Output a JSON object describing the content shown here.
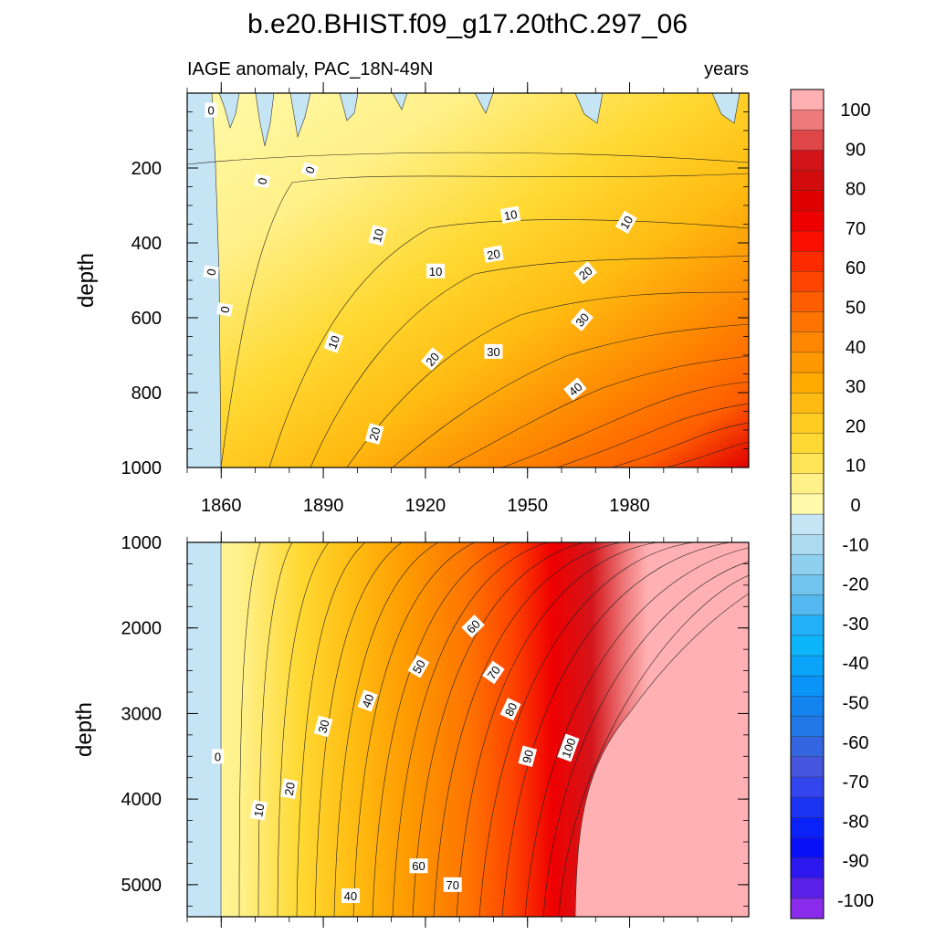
{
  "title": "b.e20.BHIST.f09_g17.20thC.297_06",
  "subtitle_left": "IAGE anomaly, PAC_18N-49N",
  "subtitle_right": "years",
  "chart_data": [
    {
      "type": "heatmap",
      "name": "upper-panel",
      "ylabel": "depth",
      "xlim": [
        1850,
        2015
      ],
      "ylim": [
        0,
        1000
      ],
      "x_ticks": [
        "1860",
        "1890",
        "1920",
        "1950",
        "1980"
      ],
      "x_tick_values": [
        1860,
        1890,
        1920,
        1950,
        1980
      ],
      "y_ticks": [
        "200",
        "400",
        "600",
        "800",
        "1000"
      ],
      "y_tick_values": [
        200,
        400,
        600,
        800,
        1000
      ],
      "contour_labels": [
        {
          "text": "0",
          "x": 1857,
          "y": 45,
          "angle": 0
        },
        {
          "text": "0",
          "x": 1872,
          "y": 235,
          "angle": -80
        },
        {
          "text": "0",
          "x": 1886,
          "y": 205,
          "angle": -70
        },
        {
          "text": "0",
          "x": 1857,
          "y": 478,
          "angle": -80
        },
        {
          "text": "0",
          "x": 1861,
          "y": 578,
          "angle": -80
        },
        {
          "text": "10",
          "x": 1906,
          "y": 380,
          "angle": -75
        },
        {
          "text": "10",
          "x": 1945,
          "y": 325,
          "angle": -10
        },
        {
          "text": "10",
          "x": 1979,
          "y": 345,
          "angle": -60
        },
        {
          "text": "10",
          "x": 1923,
          "y": 475,
          "angle": 0
        },
        {
          "text": "10",
          "x": 1893,
          "y": 665,
          "angle": -70
        },
        {
          "text": "20",
          "x": 1940,
          "y": 430,
          "angle": -10
        },
        {
          "text": "20",
          "x": 1967,
          "y": 480,
          "angle": -40
        },
        {
          "text": "20",
          "x": 1922,
          "y": 710,
          "angle": -50
        },
        {
          "text": "20",
          "x": 1905,
          "y": 910,
          "angle": -75
        },
        {
          "text": "30",
          "x": 1940,
          "y": 690,
          "angle": 0
        },
        {
          "text": "30",
          "x": 1966,
          "y": 605,
          "angle": -50
        },
        {
          "text": "40",
          "x": 1964,
          "y": 790,
          "angle": -40
        }
      ]
    },
    {
      "type": "heatmap",
      "name": "lower-panel",
      "ylabel": "depth",
      "xlim": [
        1850,
        2015
      ],
      "ylim": [
        1000,
        5375
      ],
      "y_ticks": [
        "1000",
        "2000",
        "3000",
        "4000",
        "5000"
      ],
      "y_tick_values": [
        1000,
        2000,
        3000,
        4000,
        5000
      ],
      "contour_labels": [
        {
          "text": "0",
          "x": 1859,
          "y": 3500,
          "angle": 0
        },
        {
          "text": "10",
          "x": 1871,
          "y": 4130,
          "angle": -80
        },
        {
          "text": "20",
          "x": 1880,
          "y": 3880,
          "angle": -80
        },
        {
          "text": "30",
          "x": 1890,
          "y": 3150,
          "angle": -75
        },
        {
          "text": "40",
          "x": 1903,
          "y": 2850,
          "angle": -70
        },
        {
          "text": "50",
          "x": 1918,
          "y": 2450,
          "angle": -60
        },
        {
          "text": "60",
          "x": 1934,
          "y": 1980,
          "angle": -45
        },
        {
          "text": "70",
          "x": 1940,
          "y": 2520,
          "angle": -55
        },
        {
          "text": "80",
          "x": 1945,
          "y": 2950,
          "angle": -65
        },
        {
          "text": "90",
          "x": 1950,
          "y": 3500,
          "angle": -75
        },
        {
          "text": "100",
          "x": 1962,
          "y": 3400,
          "angle": -70
        },
        {
          "text": "60",
          "x": 1918,
          "y": 4780,
          "angle": 0
        },
        {
          "text": "70",
          "x": 1928,
          "y": 5000,
          "angle": 0
        },
        {
          "text": "40",
          "x": 1898,
          "y": 5130,
          "angle": 0
        }
      ]
    }
  ],
  "colorbar": {
    "levels": [
      -100,
      -90,
      -80,
      -70,
      -60,
      -50,
      -40,
      -30,
      -20,
      -10,
      0,
      10,
      20,
      30,
      40,
      50,
      60,
      70,
      80,
      90,
      100
    ],
    "labels": [
      "100",
      "90",
      "80",
      "70",
      "60",
      "50",
      "40",
      "30",
      "20",
      "10",
      "0",
      "-10",
      "-20",
      "-30",
      "-40",
      "-50",
      "-60",
      "-70",
      "-80",
      "-90",
      "-100"
    ],
    "colors_top_to_bottom": [
      "#ffb0b2",
      "#ee7a7c",
      "#df4648",
      "#d3151a",
      "#d20c0c",
      "#e10000",
      "#ef0000",
      "#fa1000",
      "#fe2a00",
      "#fe4400",
      "#fe5e00",
      "#fe7400",
      "#fe8600",
      "#fe9800",
      "#feaa00",
      "#ffbb11",
      "#ffcc22",
      "#ffd933",
      "#ffe555",
      "#fff088",
      "#fffaaa",
      "#c5e5f4",
      "#acdbf0",
      "#8fd0ef",
      "#70c4ee",
      "#52b8ef",
      "#22b0f8",
      "#0cb4fa",
      "#0aa4fa",
      "#0a94f8",
      "#1383ee",
      "#2378e8",
      "#3366e0",
      "#4555dd",
      "#3346ee",
      "#1a34f2",
      "#0a22f8",
      "#0a10f8",
      "#2e18f0",
      "#5a20e8",
      "#8a2cec"
    ]
  }
}
